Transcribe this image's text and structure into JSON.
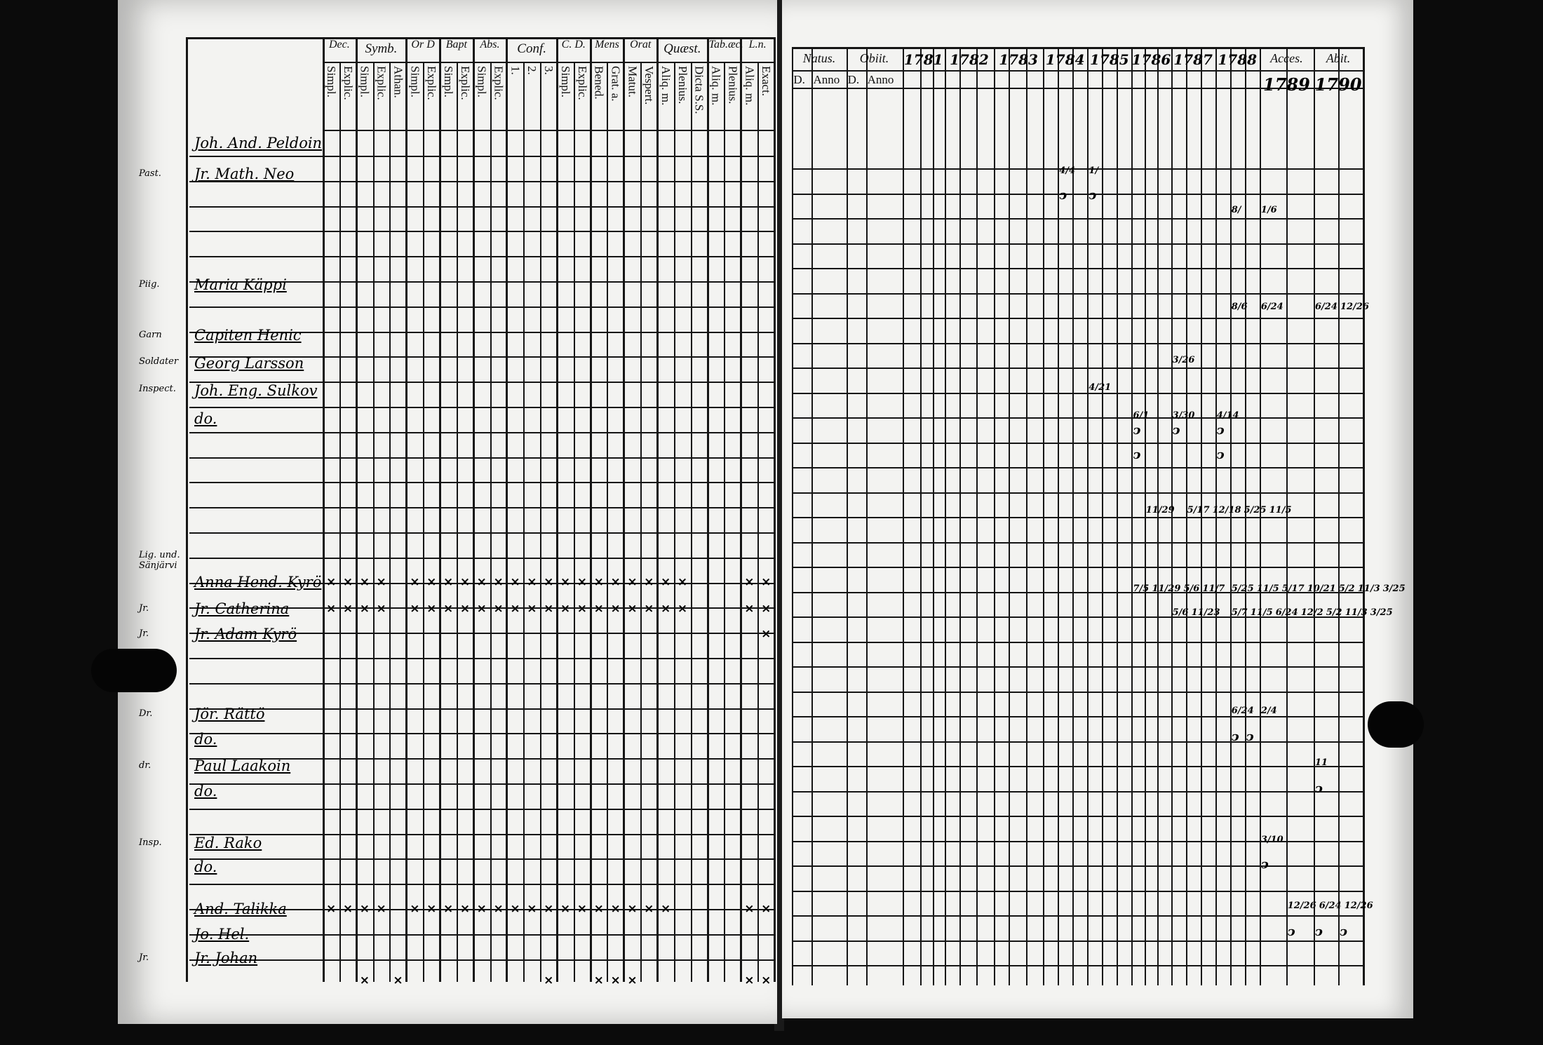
{
  "left_page": {
    "groups": [
      {
        "label": "Dec.",
        "subs": [
          "Simpl.",
          "Explic."
        ]
      },
      {
        "label": "Symb.",
        "subs": [
          "Simpl.",
          "Explic.",
          "Athan."
        ]
      },
      {
        "label": "Or D",
        "subs": [
          "Simpl.",
          "Explic."
        ]
      },
      {
        "label": "Bapt",
        "subs": [
          "Simpl.",
          "Explic."
        ]
      },
      {
        "label": "Abs.",
        "subs": [
          "Simpl.",
          "Explic."
        ]
      },
      {
        "label": "Conf.",
        "subs": [
          "1.",
          "2.",
          "3."
        ]
      },
      {
        "label": "C. D.",
        "subs": [
          "Simpl.",
          "Explic."
        ]
      },
      {
        "label": "Mens",
        "subs": [
          "Bened.",
          "Grat. a."
        ]
      },
      {
        "label": "Orat",
        "subs": [
          "Matut.",
          "Vespert."
        ]
      },
      {
        "label": "Quæst.",
        "subs": [
          "Aliq. m.",
          "Plenius.",
          "Dicta S.S."
        ]
      },
      {
        "label": "Tab.æc.",
        "subs": [
          "Aliq. m.",
          "Plenius."
        ]
      },
      {
        "label": "L.n.",
        "subs": [
          "Aliq. m.",
          "Exact."
        ]
      }
    ]
  },
  "right_page": {
    "columns": [
      {
        "label": "Natus.",
        "subs": [
          "D.",
          "Anno"
        ]
      },
      {
        "label": "Obiit.",
        "subs": [
          "D.",
          "Anno"
        ]
      },
      {
        "label": "1781",
        "subs": [
          "",
          "",
          ""
        ]
      },
      {
        "label": "1782",
        "subs": [
          "",
          "",
          ""
        ]
      },
      {
        "label": "1783",
        "subs": [
          "",
          "",
          ""
        ]
      },
      {
        "label": "1784",
        "subs": [
          "",
          "",
          ""
        ]
      },
      {
        "label": "1785",
        "subs": [
          "",
          "",
          ""
        ]
      },
      {
        "label": "1786",
        "subs": [
          "",
          "",
          ""
        ]
      },
      {
        "label": "1787",
        "subs": [
          "",
          "",
          ""
        ]
      },
      {
        "label": "1788",
        "subs": [
          "",
          "",
          ""
        ]
      },
      {
        "label": "Acces.",
        "year": "1789",
        "subs": [
          "",
          ""
        ]
      },
      {
        "label": "Abit.",
        "year": "1790",
        "subs": [
          "",
          ""
        ]
      }
    ]
  },
  "rows": [
    {
      "prefix": "",
      "name": "Joh. And. Peldoin",
      "marks": [],
      "entries": []
    },
    {
      "prefix": "Past.",
      "name": "Jr. Math. Neo",
      "marks": [],
      "entries": [
        {
          "col": 5,
          "sub": 1,
          "text": "4/4"
        },
        {
          "col": 6,
          "sub": 0,
          "text": "1/"
        }
      ]
    },
    {
      "prefix": "",
      "name": "",
      "marks": [],
      "entries": [
        {
          "col": 5,
          "sub": 1,
          "text": "ↄ"
        },
        {
          "col": 6,
          "sub": 0,
          "text": "ↄ"
        }
      ]
    },
    {
      "prefix": "",
      "name": "",
      "marks": [],
      "entries": [
        {
          "col": 9,
          "sub": 1,
          "text": "8/"
        },
        {
          "col": 10,
          "sub": 0,
          "text": "1/6"
        }
      ]
    },
    {
      "prefix": "Piig.",
      "name": "Maria Käppi",
      "marks": [],
      "entries": []
    },
    {
      "prefix": "",
      "name": "",
      "marks": [],
      "entries": [
        {
          "col": 9,
          "sub": 1,
          "text": "8/6"
        },
        {
          "col": 10,
          "sub": 0,
          "text": "6/24"
        },
        {
          "col": 11,
          "sub": 0,
          "text": "6/24"
        },
        {
          "col": 11,
          "sub": 1,
          "text": "12/26"
        }
      ]
    },
    {
      "prefix": "Garn",
      "name": "Capiten Henic",
      "marks": [],
      "entries": []
    },
    {
      "prefix": "Soldater",
      "name": "Georg Larsson",
      "marks": [],
      "entries": [
        {
          "col": 8,
          "sub": 0,
          "text": "3/26"
        }
      ]
    },
    {
      "prefix": "Inspect.",
      "name": "Joh. Eng. Sulkov",
      "marks": [],
      "entries": [
        {
          "col": 6,
          "sub": 0,
          "text": "4/21"
        }
      ]
    },
    {
      "prefix": "",
      "name": "do.",
      "marks": [],
      "entries": [
        {
          "col": 7,
          "sub": 0,
          "text": "6/1"
        },
        {
          "col": 8,
          "sub": 0,
          "text": "3/30"
        },
        {
          "col": 9,
          "sub": 0,
          "text": "4/14"
        }
      ]
    },
    {
      "prefix": "",
      "name": "",
      "marks": [],
      "entries": [
        {
          "col": 7,
          "sub": 0,
          "text": "ↄ"
        },
        {
          "col": 8,
          "sub": 0,
          "text": "ↄ"
        },
        {
          "col": 9,
          "sub": 0,
          "text": "ↄ"
        }
      ]
    },
    {
      "prefix": "",
      "name": "",
      "marks": [],
      "entries": [
        {
          "col": 7,
          "sub": 0,
          "text": "ↄ"
        },
        {
          "col": 9,
          "sub": 0,
          "text": "ↄ"
        }
      ]
    },
    {
      "prefix": "",
      "name": "",
      "marks": [],
      "entries": [
        {
          "col": 7,
          "sub": 1,
          "text": "11/29"
        },
        {
          "col": 8,
          "sub": 1,
          "text": "5/17"
        },
        {
          "col": 8,
          "sub": 2,
          "text": "12/18"
        },
        {
          "col": 9,
          "sub": 1,
          "text": "5/25"
        },
        {
          "col": 9,
          "sub": 2,
          "text": "11/5"
        }
      ]
    },
    {
      "prefix": "Lig. und. Sänjärvi",
      "name": "Anna Hend. Kyrö",
      "marks": [
        0,
        1,
        2,
        3,
        5,
        6,
        7,
        8,
        9,
        10,
        11,
        12,
        13,
        14,
        15,
        16,
        17,
        18,
        19,
        20,
        21,
        25,
        26
      ],
      "entries": [
        {
          "col": 7,
          "sub": 0,
          "text": "7/5"
        },
        {
          "col": 7,
          "sub": 1,
          "text": "11/29"
        },
        {
          "col": 8,
          "sub": 0,
          "text": "5/6"
        },
        {
          "col": 8,
          "sub": 1,
          "text": "11/7"
        },
        {
          "col": 9,
          "sub": 1,
          "text": "5/25"
        },
        {
          "col": 9,
          "sub": 2,
          "text": "11/5"
        },
        {
          "col": 10,
          "sub": 0,
          "text": "5/17"
        },
        {
          "col": 10,
          "sub": 1,
          "text": "10/21"
        },
        {
          "col": 11,
          "sub": 0,
          "text": "5/2"
        },
        {
          "col": 11,
          "sub": 1,
          "text": "11/3"
        },
        {
          "col": 12,
          "sub": 0,
          "text": "3/25"
        }
      ]
    },
    {
      "prefix": "Jr.",
      "name": "Jr. Catherina",
      "marks": [
        0,
        1,
        2,
        3,
        5,
        6,
        7,
        8,
        9,
        10,
        11,
        12,
        13,
        14,
        15,
        16,
        17,
        18,
        19,
        20,
        21,
        25,
        26
      ],
      "entries": [
        {
          "col": 8,
          "sub": 0,
          "text": "5/6"
        },
        {
          "col": 8,
          "sub": 1,
          "text": "11/23"
        },
        {
          "col": 9,
          "sub": 1,
          "text": "5/7"
        },
        {
          "col": 9,
          "sub": 2,
          "text": "11/5"
        },
        {
          "col": 10,
          "sub": 0,
          "text": "6/24"
        },
        {
          "col": 10,
          "sub": 1,
          "text": "12/2"
        },
        {
          "col": 11,
          "sub": 0,
          "text": "5/2"
        },
        {
          "col": 11,
          "sub": 1,
          "text": "11/3"
        },
        {
          "col": 12,
          "sub": 0,
          "text": "3/25"
        }
      ]
    },
    {
      "prefix": "Jr.",
      "name": "Jr. Adam Kyrö",
      "marks": [
        26
      ],
      "entries": []
    },
    {
      "prefix": "Dr.",
      "name": "Jör. Rättö",
      "marks": [],
      "entries": [
        {
          "col": 9,
          "sub": 1,
          "text": "6/24"
        },
        {
          "col": 10,
          "sub": 0,
          "text": "2/4"
        }
      ]
    },
    {
      "prefix": "",
      "name": "do.",
      "marks": [],
      "entries": [
        {
          "col": 9,
          "sub": 1,
          "text": "ↄ"
        },
        {
          "col": 9,
          "sub": 2,
          "text": "ↄ"
        }
      ]
    },
    {
      "prefix": "dr.",
      "name": "Paul Laakoin",
      "marks": [],
      "entries": [
        {
          "col": 11,
          "sub": 0,
          "text": "11"
        }
      ]
    },
    {
      "prefix": "",
      "name": "do.",
      "marks": [],
      "entries": [
        {
          "col": 11,
          "sub": 0,
          "text": "ↄ"
        }
      ]
    },
    {
      "prefix": "Insp.",
      "name": "Ed. Rako",
      "marks": [],
      "entries": [
        {
          "col": 10,
          "sub": 0,
          "text": "3/10"
        }
      ]
    },
    {
      "prefix": "",
      "name": "do.",
      "marks": [],
      "entries": [
        {
          "col": 10,
          "sub": 0,
          "text": "ↄ"
        }
      ]
    },
    {
      "prefix": "",
      "name": "And. Talikka",
      "marks": [
        0,
        1,
        2,
        3,
        5,
        6,
        7,
        8,
        9,
        10,
        11,
        12,
        13,
        14,
        15,
        16,
        17,
        18,
        19,
        20,
        25,
        26
      ],
      "entries": [
        {
          "col": 10,
          "sub": 1,
          "text": "12/26"
        },
        {
          "col": 11,
          "sub": 0,
          "text": "6/24"
        },
        {
          "col": 11,
          "sub": 1,
          "text": "12/26"
        }
      ]
    },
    {
      "prefix": "",
      "name": "Jo. Hel.",
      "marks": [],
      "entries": [
        {
          "col": 10,
          "sub": 1,
          "text": "ↄ"
        },
        {
          "col": 11,
          "sub": 0,
          "text": "ↄ"
        },
        {
          "col": 11,
          "sub": 1,
          "text": "ↄ"
        }
      ]
    },
    {
      "prefix": "Jr.",
      "name": "Jr. Johan",
      "marks": [
        2,
        4,
        13,
        16,
        17,
        18,
        25,
        26
      ],
      "entries": []
    }
  ],
  "mark_glyph": "×"
}
